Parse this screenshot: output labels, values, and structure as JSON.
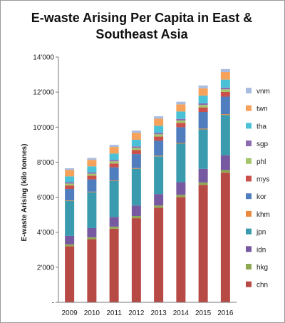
{
  "chart_data": {
    "type": "bar",
    "stacked": true,
    "title_line1": "E-waste Arising Per Capita in East &",
    "title_line2": "Southeast Asia",
    "xlabel": "",
    "ylabel": "E-waste Arising (kilo tonnes)",
    "ylim": [
      0,
      14000
    ],
    "yticks": [
      0,
      2000,
      4000,
      6000,
      8000,
      10000,
      12000,
      14000
    ],
    "ytick_labels": [
      "-",
      "2'000",
      "4'000",
      "6'000",
      "8'000",
      "10'000",
      "12'000",
      "14'000"
    ],
    "grid": false,
    "legend_position": "right",
    "categories": [
      "2009",
      "2010",
      "2011",
      "2012",
      "2013",
      "2014",
      "2015",
      "2016"
    ],
    "series": [
      {
        "name": "chn",
        "color": "#b84a45",
        "values": [
          3200,
          3600,
          4200,
          4800,
          5400,
          6000,
          6700,
          7400
        ]
      },
      {
        "name": "hkg",
        "color": "#8fa854",
        "values": [
          110,
          115,
          120,
          125,
          130,
          135,
          140,
          145
        ]
      },
      {
        "name": "idn",
        "color": "#7659a0",
        "values": [
          480,
          520,
          550,
          600,
          650,
          720,
          780,
          850
        ]
      },
      {
        "name": "jpn",
        "color": "#3a9aae",
        "values": [
          2000,
          2050,
          2050,
          2100,
          2150,
          2200,
          2250,
          2300
        ]
      },
      {
        "name": "khm",
        "color": "#e8893c",
        "values": [
          30,
          30,
          35,
          35,
          40,
          40,
          45,
          45
        ]
      },
      {
        "name": "kor",
        "color": "#4f7dbd",
        "values": [
          650,
          700,
          750,
          800,
          850,
          900,
          950,
          1000
        ]
      },
      {
        "name": "mys",
        "color": "#c9504b",
        "values": [
          200,
          210,
          220,
          230,
          240,
          250,
          260,
          270
        ]
      },
      {
        "name": "phl",
        "color": "#a6c56a",
        "values": [
          110,
          115,
          120,
          125,
          130,
          135,
          140,
          150
        ]
      },
      {
        "name": "sgp",
        "color": "#8c6bb1",
        "values": [
          80,
          82,
          84,
          86,
          88,
          90,
          92,
          94
        ]
      },
      {
        "name": "tha",
        "color": "#4bc1d8",
        "values": [
          330,
          340,
          360,
          380,
          400,
          420,
          440,
          460
        ]
      },
      {
        "name": "twn",
        "color": "#f7a25a",
        "values": [
          360,
          370,
          380,
          390,
          400,
          410,
          420,
          430
        ]
      },
      {
        "name": "vnm",
        "color": "#a9bce0",
        "values": [
          100,
          110,
          120,
          130,
          140,
          150,
          160,
          170
        ]
      }
    ]
  }
}
